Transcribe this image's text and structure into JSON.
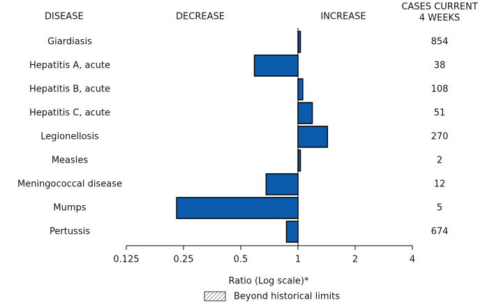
{
  "chart_data": {
    "type": "bar",
    "orientation": "horizontal",
    "xscale": "log",
    "column_headers": {
      "disease": "DISEASE",
      "decrease": "DECREASE",
      "increase": "INCREASE",
      "cases": [
        "CASES CURRENT",
        "4 WEEKS"
      ]
    },
    "categories": [
      "Giardiasis",
      "Hepatitis A, acute",
      "Hepatitis B, acute",
      "Hepatitis C, acute",
      "Legionellosis",
      "Measles",
      "Meningococcal disease",
      "Mumps",
      "Pertussis"
    ],
    "values": [
      1.03,
      0.59,
      1.06,
      1.19,
      1.43,
      1.03,
      0.68,
      0.23,
      0.87
    ],
    "cases": [
      854,
      38,
      108,
      51,
      270,
      2,
      12,
      5,
      674
    ],
    "color": "#0b5cad",
    "xlim": [
      0.125,
      4
    ],
    "xticks": [
      0.125,
      0.25,
      0.5,
      1,
      2,
      4
    ],
    "xlabel": "Ratio (Log scale)*",
    "legend": "Beyond historical limits"
  }
}
